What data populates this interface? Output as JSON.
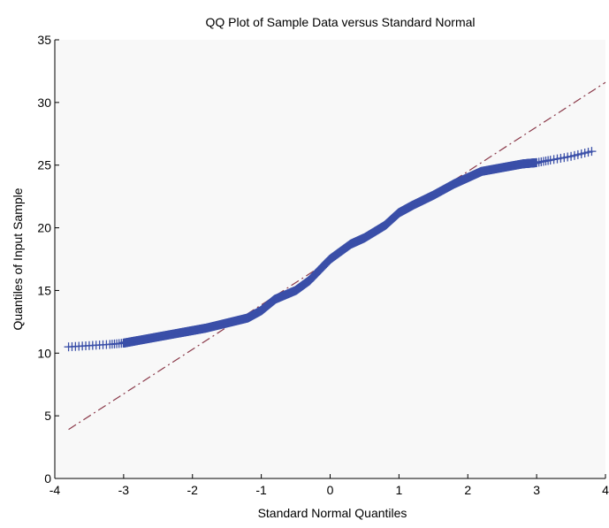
{
  "chart_data": {
    "type": "scatter",
    "title": "QQ Plot of Sample Data versus Standard Normal",
    "xlabel": "Standard Normal Quantiles",
    "ylabel": "Quantiles of Input Sample",
    "xlim": [
      -4,
      4
    ],
    "ylim": [
      0,
      35
    ],
    "x_ticks": [
      -4,
      -3,
      -2,
      -1,
      0,
      1,
      2,
      3,
      4
    ],
    "x_tick_labels": [
      "-4",
      "-3",
      "-2",
      "-1",
      "0",
      "1",
      "2",
      "3",
      "4"
    ],
    "y_ticks": [
      0,
      5,
      10,
      15,
      20,
      25,
      30,
      35
    ],
    "y_tick_labels": [
      "0",
      "5",
      "10",
      "15",
      "20",
      "25",
      "30",
      "35"
    ],
    "grid": false,
    "marker": "+",
    "colors": {
      "points": "#3a4fa8",
      "reference_line": "#8b3a4a",
      "axes": "#000000"
    },
    "sample_quantiles": {
      "theoretical": [
        -3.8,
        -3.5,
        -3.2,
        -3.0,
        -2.8,
        -2.5,
        -2.2,
        -2.0,
        -1.8,
        -1.5,
        -1.2,
        -1.0,
        -0.8,
        -0.5,
        -0.3,
        0.0,
        0.3,
        0.5,
        0.8,
        1.0,
        1.2,
        1.5,
        1.8,
        2.0,
        2.2,
        2.5,
        2.8,
        3.0,
        3.2,
        3.5,
        3.8
      ],
      "sample": [
        10.5,
        10.6,
        10.7,
        10.8,
        11.0,
        11.3,
        11.6,
        11.8,
        12.0,
        12.4,
        12.8,
        13.4,
        14.3,
        15.0,
        15.8,
        17.5,
        18.7,
        19.2,
        20.2,
        21.2,
        21.8,
        22.6,
        23.5,
        24.0,
        24.5,
        24.8,
        25.1,
        25.2,
        25.4,
        25.7,
        26.1
      ]
    },
    "reference_line": {
      "slope": 3.55,
      "intercept": 17.4,
      "style": "dash-dot"
    }
  }
}
